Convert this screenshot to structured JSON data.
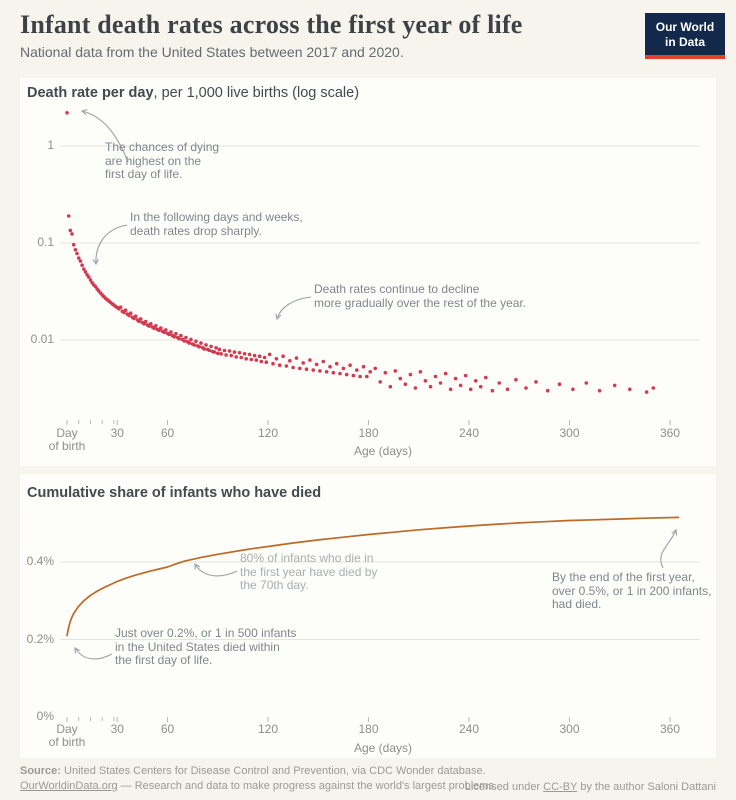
{
  "header": {
    "title": "Infant death rates across the first year of life",
    "subtitle": "National data from the United States between 2017 and 2020.",
    "logo_line1": "Our World",
    "logo_line2": "in Data"
  },
  "colors": {
    "accent_red": "#d23a50",
    "accent_orange": "#bc6a25",
    "logo_navy": "#12294b",
    "logo_red": "#e0422c",
    "gridline": "#e6e3db",
    "tick": "#b8b8b0",
    "arrow": "#9ba1a6"
  },
  "footer": {
    "source_label": "Source:",
    "source_text": " United States Centers for Disease Control and Prevention, via CDC Wonder database.",
    "site_link": "OurWorldinData.org",
    "tagline": " — Research and data to make progress against the world's largest problems.",
    "license_prefix": "Licensed under ",
    "license_link": "CC-BY",
    "license_suffix": " by the author Saloni Dattani"
  },
  "chart_data": [
    {
      "type": "scatter",
      "title_bold": "Death rate per day",
      "title_rest": ", per 1,000 live births (log scale)",
      "xlabel": "Age (days)",
      "ylabel": "Death rate per day, per 1,000 live births",
      "y_scale": "log",
      "xlim": [
        0,
        378
      ],
      "ylim": [
        0.0028,
        2.6
      ],
      "grid": true,
      "y_gridlines": [
        {
          "v": 1,
          "label": "1"
        },
        {
          "v": 0.1,
          "label": "0.1"
        },
        {
          "v": 0.01,
          "label": "0.01"
        }
      ],
      "x_ticks": [
        {
          "day": 0,
          "label": "Day\nof birth"
        },
        {
          "day": 30,
          "label": "30"
        },
        {
          "day": 60,
          "label": "60"
        },
        {
          "day": 120,
          "label": "120"
        },
        {
          "day": 180,
          "label": "180"
        },
        {
          "day": 240,
          "label": "240"
        },
        {
          "day": 300,
          "label": "300"
        },
        {
          "day": 360,
          "label": "360"
        }
      ],
      "x_minor_ticks": [
        7,
        14,
        21,
        28
      ],
      "annotations": [
        {
          "text": "The chances of dying\nare highest on the\nfirst day of life."
        },
        {
          "text": "In the following days and weeks,\ndeath rates drop sharply."
        },
        {
          "text": "Death rates continue to decline\nmore gradually over the rest of the year."
        }
      ],
      "points": [
        [
          0,
          2.2
        ],
        [
          1,
          0.19
        ],
        [
          2,
          0.135
        ],
        [
          3,
          0.124
        ],
        [
          4,
          0.096
        ],
        [
          5,
          0.085
        ],
        [
          6,
          0.078
        ],
        [
          7,
          0.07
        ],
        [
          8,
          0.065
        ],
        [
          9,
          0.059
        ],
        [
          10,
          0.054
        ],
        [
          11,
          0.0505
        ],
        [
          12,
          0.047
        ],
        [
          13,
          0.0445
        ],
        [
          14,
          0.0415
        ],
        [
          15,
          0.039
        ],
        [
          16,
          0.037
        ],
        [
          17,
          0.0355
        ],
        [
          18,
          0.0335
        ],
        [
          19,
          0.032
        ],
        [
          20,
          0.0305
        ],
        [
          21,
          0.0292
        ],
        [
          22,
          0.028
        ],
        [
          23,
          0.027
        ],
        [
          24,
          0.026
        ],
        [
          25,
          0.0252
        ],
        [
          26,
          0.0244
        ],
        [
          27,
          0.0236
        ],
        [
          28,
          0.0229
        ],
        [
          29,
          0.0222
        ],
        [
          30,
          0.0216
        ],
        [
          31,
          0.021
        ],
        [
          32,
          0.0218
        ],
        [
          33,
          0.0198
        ],
        [
          34,
          0.0192
        ],
        [
          35,
          0.0203
        ],
        [
          36,
          0.0185
        ],
        [
          37,
          0.0179
        ],
        [
          38,
          0.0189
        ],
        [
          39,
          0.0172
        ],
        [
          40,
          0.0167
        ],
        [
          41,
          0.0176
        ],
        [
          42,
          0.0161
        ],
        [
          43,
          0.0156
        ],
        [
          44,
          0.0165
        ],
        [
          45,
          0.0151
        ],
        [
          46,
          0.0147
        ],
        [
          47,
          0.0155
        ],
        [
          48,
          0.0143
        ],
        [
          49,
          0.0139
        ],
        [
          50,
          0.0147
        ],
        [
          51,
          0.0136
        ],
        [
          52,
          0.0132
        ],
        [
          53,
          0.014
        ],
        [
          54,
          0.0129
        ],
        [
          55,
          0.0126
        ],
        [
          56,
          0.0133
        ],
        [
          57,
          0.0123
        ],
        [
          58,
          0.012
        ],
        [
          59,
          0.0127
        ],
        [
          60,
          0.0117
        ],
        [
          61,
          0.0114
        ],
        [
          62,
          0.0121
        ],
        [
          63,
          0.0111
        ],
        [
          64,
          0.0108
        ],
        [
          65,
          0.0116
        ],
        [
          66,
          0.0106
        ],
        [
          67,
          0.0103
        ],
        [
          68,
          0.0111
        ],
        [
          69,
          0.0101
        ],
        [
          70,
          0.0098
        ],
        [
          71,
          0.0106
        ],
        [
          72,
          0.0096
        ],
        [
          73,
          0.0093
        ],
        [
          74,
          0.0101
        ],
        [
          75,
          0.0091
        ],
        [
          76,
          0.0089
        ],
        [
          77,
          0.0097
        ],
        [
          78,
          0.0087
        ],
        [
          79,
          0.0085
        ],
        [
          80,
          0.0093
        ],
        [
          81,
          0.0083
        ],
        [
          82,
          0.0081
        ],
        [
          83,
          0.0089
        ],
        [
          84,
          0.008
        ],
        [
          85,
          0.0078
        ],
        [
          86,
          0.0086
        ],
        [
          87,
          0.0076
        ],
        [
          88,
          0.0075
        ],
        [
          89,
          0.0083
        ],
        [
          90,
          0.0073
        ],
        [
          91,
          0.008
        ],
        [
          92,
          0.0072
        ],
        [
          94,
          0.0078
        ],
        [
          95,
          0.007
        ],
        [
          97,
          0.0077
        ],
        [
          98,
          0.0069
        ],
        [
          100,
          0.0075
        ],
        [
          101,
          0.0067
        ],
        [
          103,
          0.0074
        ],
        [
          104,
          0.0066
        ],
        [
          106,
          0.0072
        ],
        [
          107,
          0.0064
        ],
        [
          109,
          0.0071
        ],
        [
          110,
          0.0063
        ],
        [
          112,
          0.0069
        ],
        [
          113,
          0.0062
        ],
        [
          115,
          0.0068
        ],
        [
          116,
          0.006
        ],
        [
          118,
          0.0066
        ],
        [
          119,
          0.0059
        ],
        [
          121,
          0.0071
        ],
        [
          123,
          0.0057
        ],
        [
          125,
          0.0064
        ],
        [
          127,
          0.0055
        ],
        [
          129,
          0.0068
        ],
        [
          131,
          0.0054
        ],
        [
          133,
          0.0061
        ],
        [
          135,
          0.0052
        ],
        [
          137,
          0.0065
        ],
        [
          139,
          0.0051
        ],
        [
          141,
          0.0058
        ],
        [
          143,
          0.005
        ],
        [
          145,
          0.0062
        ],
        [
          147,
          0.0049
        ],
        [
          149,
          0.0056
        ],
        [
          151,
          0.0048
        ],
        [
          153,
          0.006
        ],
        [
          155,
          0.0047
        ],
        [
          157,
          0.0053
        ],
        [
          159,
          0.0046
        ],
        [
          161,
          0.0057
        ],
        [
          163,
          0.0045
        ],
        [
          165,
          0.0051
        ],
        [
          167,
          0.0044
        ],
        [
          169,
          0.0055
        ],
        [
          171,
          0.0043
        ],
        [
          173,
          0.0049
        ],
        [
          175,
          0.0042
        ],
        [
          177,
          0.0053
        ],
        [
          179,
          0.0042
        ],
        [
          181,
          0.0047
        ],
        [
          184,
          0.0051
        ],
        [
          187,
          0.0037
        ],
        [
          190,
          0.0046
        ],
        [
          193,
          0.0033
        ],
        [
          196,
          0.0048
        ],
        [
          199,
          0.004
        ],
        [
          202,
          0.0035
        ],
        [
          205,
          0.0044
        ],
        [
          208,
          0.0032
        ],
        [
          211,
          0.0047
        ],
        [
          214,
          0.0038
        ],
        [
          217,
          0.0033
        ],
        [
          220,
          0.0042
        ],
        [
          223,
          0.0036
        ],
        [
          226,
          0.0045
        ],
        [
          229,
          0.0031
        ],
        [
          232,
          0.004
        ],
        [
          235,
          0.0034
        ],
        [
          238,
          0.0043
        ],
        [
          241,
          0.0031
        ],
        [
          244,
          0.0038
        ],
        [
          247,
          0.0033
        ],
        [
          250,
          0.0041
        ],
        [
          254,
          0.003
        ],
        [
          258,
          0.0036
        ],
        [
          263,
          0.0031
        ],
        [
          268,
          0.0039
        ],
        [
          274,
          0.0032
        ],
        [
          280,
          0.0037
        ],
        [
          287,
          0.003
        ],
        [
          294,
          0.0035
        ],
        [
          302,
          0.0031
        ],
        [
          310,
          0.0036
        ],
        [
          318,
          0.003
        ],
        [
          327,
          0.0034
        ],
        [
          336,
          0.0031
        ],
        [
          346,
          0.0029
        ],
        [
          350,
          0.0032
        ]
      ]
    },
    {
      "type": "line",
      "title": "Cumulative share of infants who have died",
      "xlabel": "Age (days)",
      "ylabel": "Cumulative share of infants who have died (%)",
      "y_scale": "linear",
      "xlim": [
        0,
        378
      ],
      "ylim": [
        0,
        0.56
      ],
      "grid": true,
      "y_gridlines": [
        {
          "v": 0.4,
          "label": "0.4%"
        },
        {
          "v": 0.2,
          "label": "0.2%"
        },
        {
          "v": 0,
          "label": "0%"
        }
      ],
      "x_ticks": [
        {
          "day": 0,
          "label": "Day\nof birth"
        },
        {
          "day": 30,
          "label": "30"
        },
        {
          "day": 60,
          "label": "60"
        },
        {
          "day": 120,
          "label": "120"
        },
        {
          "day": 180,
          "label": "180"
        },
        {
          "day": 240,
          "label": "240"
        },
        {
          "day": 300,
          "label": "300"
        },
        {
          "day": 360,
          "label": "360"
        }
      ],
      "x_minor_ticks": [
        7,
        14,
        21,
        28
      ],
      "annotations": [
        {
          "text": "80% of infants who die in\nthe first year have died by\nthe 70th day."
        },
        {
          "text": "By the end of the first year,\nover 0.5%, or 1 in 200 infants,\nhad died."
        },
        {
          "text": "Just over 0.2%, or 1 in 500 infants\nin the United States died within\nthe first day of life."
        }
      ],
      "points": [
        [
          0,
          0.21
        ],
        [
          1,
          0.232
        ],
        [
          2,
          0.247
        ],
        [
          3,
          0.258
        ],
        [
          4,
          0.267
        ],
        [
          5,
          0.274
        ],
        [
          7,
          0.286
        ],
        [
          10,
          0.3
        ],
        [
          14,
          0.314
        ],
        [
          18,
          0.325
        ],
        [
          22,
          0.334
        ],
        [
          26,
          0.342
        ],
        [
          30,
          0.35
        ],
        [
          35,
          0.358
        ],
        [
          40,
          0.365
        ],
        [
          45,
          0.371
        ],
        [
          50,
          0.377
        ],
        [
          55,
          0.382
        ],
        [
          60,
          0.387
        ],
        [
          65,
          0.395
        ],
        [
          70,
          0.402
        ],
        [
          80,
          0.412
        ],
        [
          90,
          0.42
        ],
        [
          100,
          0.427
        ],
        [
          110,
          0.434
        ],
        [
          120,
          0.44
        ],
        [
          135,
          0.449
        ],
        [
          150,
          0.457
        ],
        [
          165,
          0.464
        ],
        [
          180,
          0.471
        ],
        [
          195,
          0.477
        ],
        [
          210,
          0.483
        ],
        [
          225,
          0.488
        ],
        [
          240,
          0.493
        ],
        [
          255,
          0.497
        ],
        [
          270,
          0.501
        ],
        [
          285,
          0.504
        ],
        [
          300,
          0.507
        ],
        [
          315,
          0.509
        ],
        [
          330,
          0.511
        ],
        [
          345,
          0.513
        ],
        [
          365,
          0.515
        ]
      ]
    }
  ]
}
